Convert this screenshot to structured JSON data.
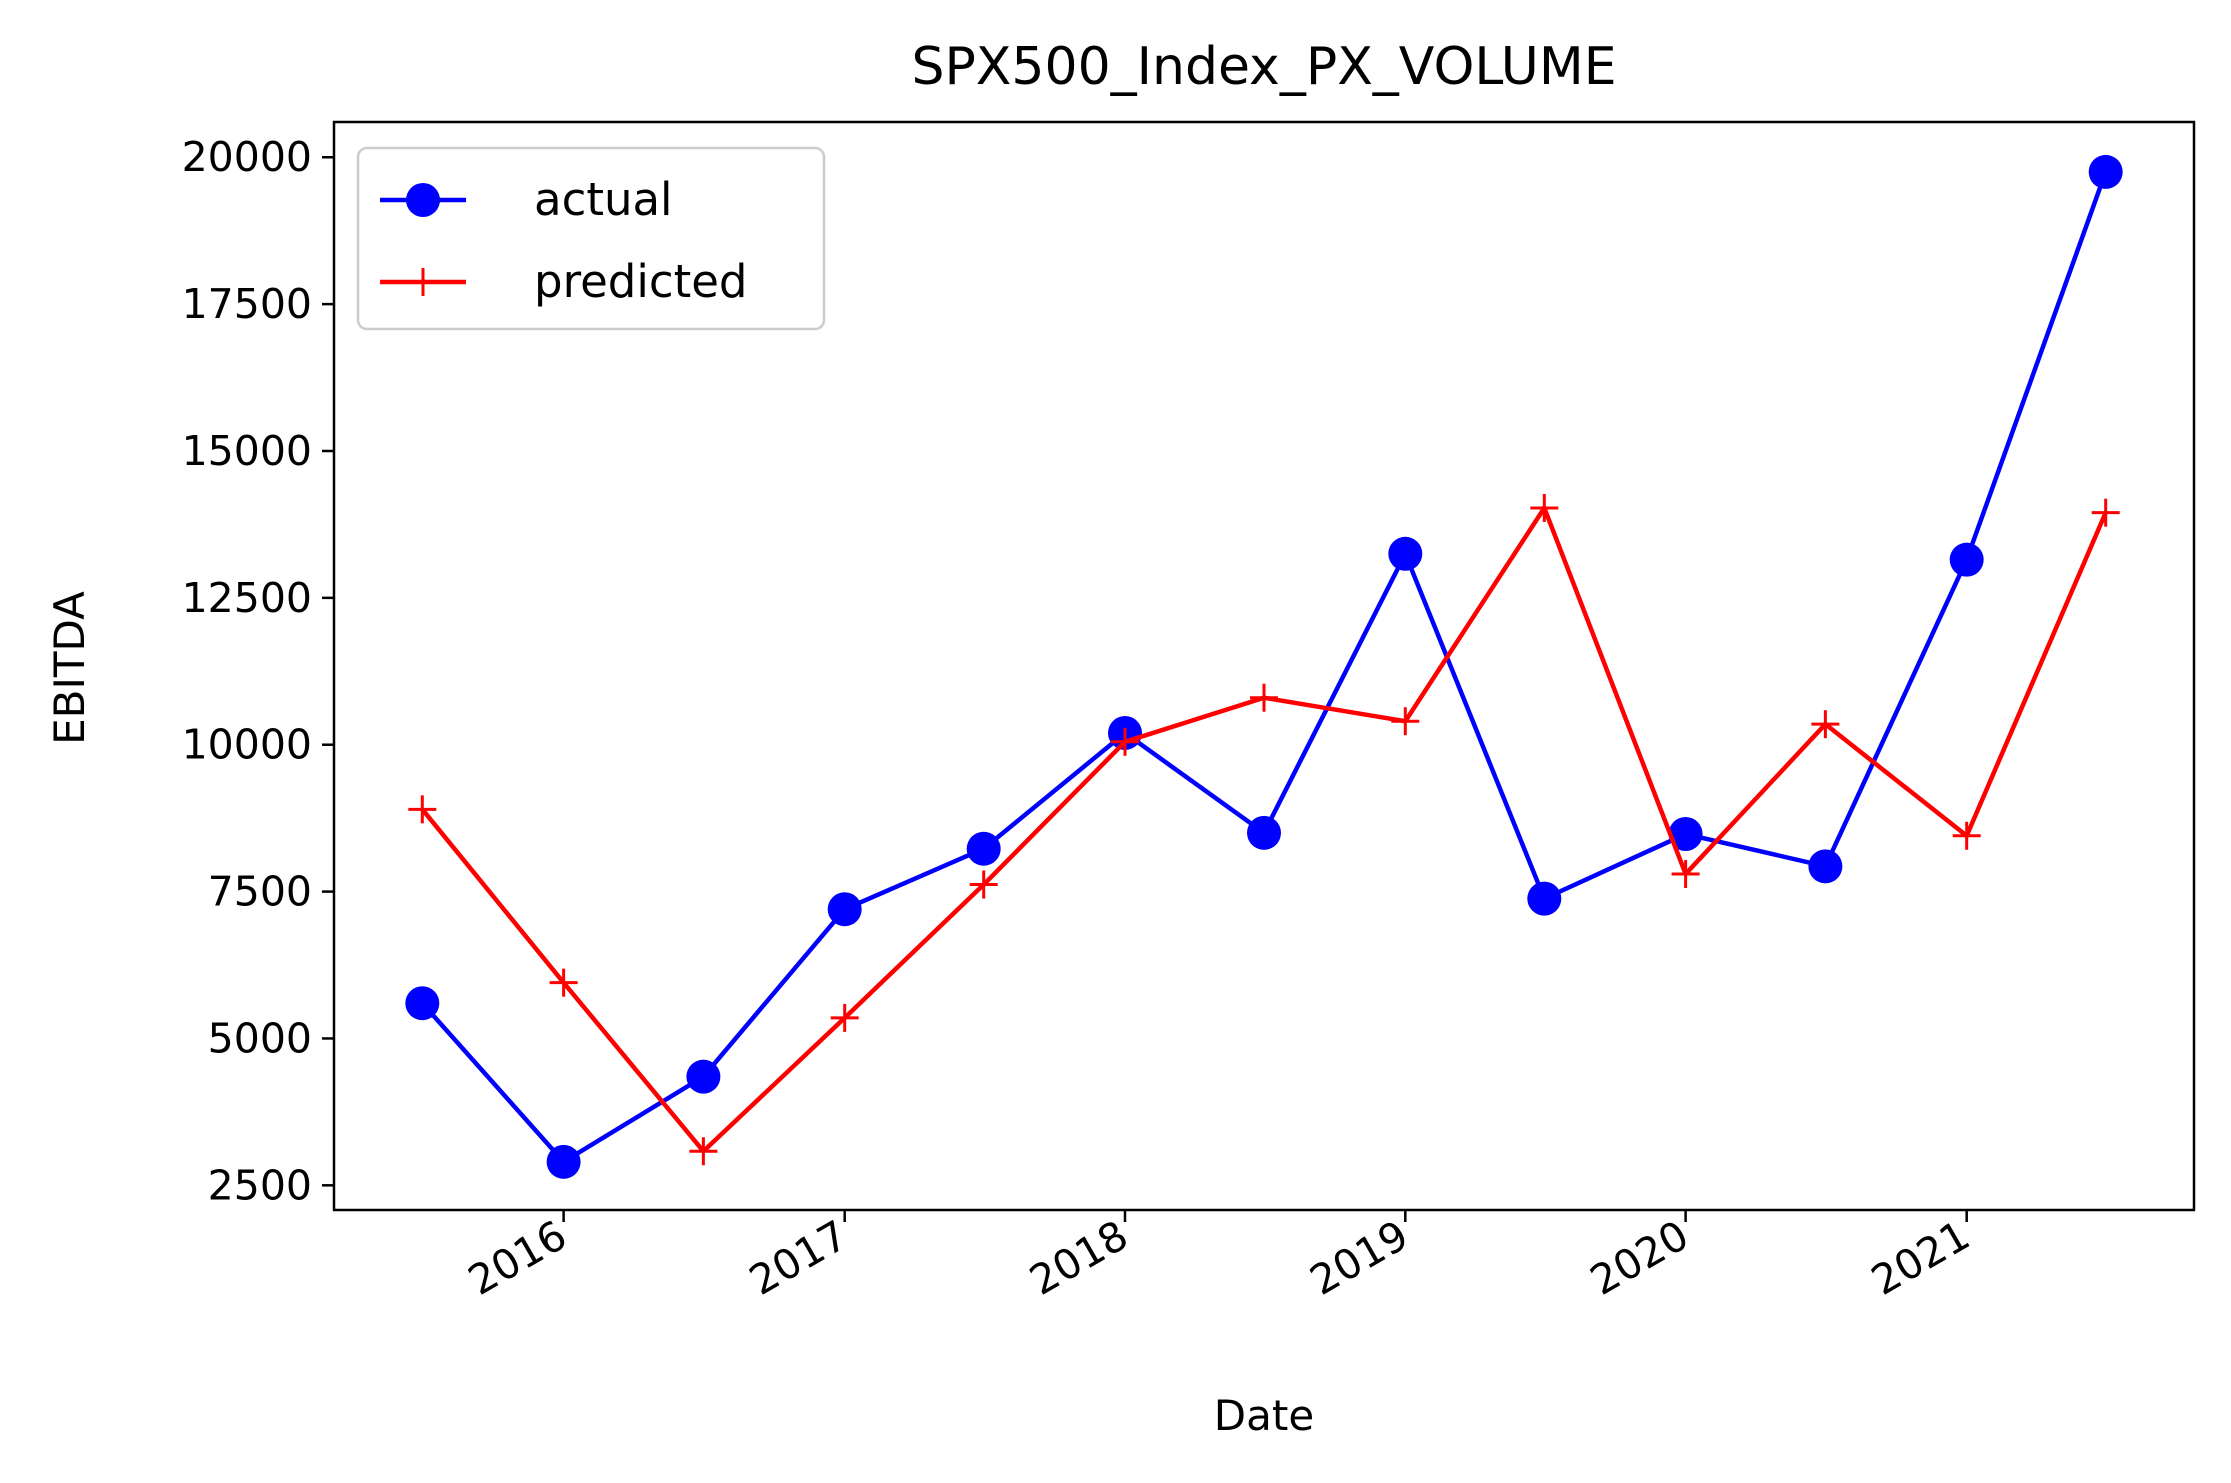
{
  "chart_data": {
    "type": "line",
    "title": "SPX500_Index_PX_VOLUME",
    "xlabel": "Date",
    "ylabel": "EBITDA",
    "x": [
      "2015-07",
      "2016-01",
      "2016-07",
      "2017-01",
      "2017-07",
      "2018-01",
      "2018-07",
      "2019-01",
      "2019-07",
      "2020-01",
      "2020-07",
      "2021-01",
      "2021-07"
    ],
    "xticks": [
      "2016",
      "2017",
      "2018",
      "2019",
      "2020",
      "2021"
    ],
    "xlim": [
      "2015-03-08",
      "2021-10-24"
    ],
    "yticks": [
      2500,
      5000,
      7500,
      10000,
      12500,
      15000,
      17500,
      20000
    ],
    "ylim": [
      2080,
      20600
    ],
    "grid": false,
    "legend_position": "upper-left",
    "series": [
      {
        "name": "actual",
        "color": "#0000ff",
        "marker": "circle",
        "values": [
          5600,
          2900,
          4350,
          7200,
          8230,
          10200,
          8500,
          13250,
          7380,
          8480,
          7930,
          13150,
          19750
        ]
      },
      {
        "name": "predicted",
        "color": "#ff0000",
        "marker": "plus",
        "values": [
          8900,
          5950,
          3080,
          5350,
          7620,
          10050,
          10800,
          10400,
          14030,
          7800,
          10350,
          8450,
          13950
        ]
      }
    ]
  }
}
